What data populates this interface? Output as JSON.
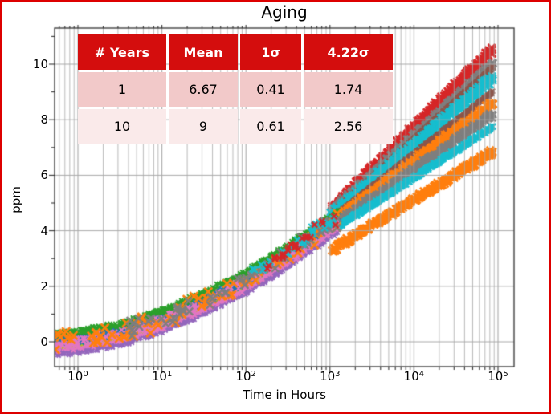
{
  "window": {
    "frame_border_color": "#dd0000",
    "background_color": "#ffffff"
  },
  "table": {
    "header": [
      "# Years",
      "Mean",
      "1σ",
      "4.22σ"
    ],
    "rows": [
      [
        "1",
        "6.67",
        "0.41",
        "1.74"
      ],
      [
        "10",
        "9",
        "0.61",
        "2.56"
      ]
    ],
    "header_bg": "#d40d0d",
    "header_text_color": "#ffffff",
    "row_bgs": [
      "#f2c9c9",
      "#faeaea"
    ]
  },
  "chart_data": {
    "type": "scatter",
    "title": "Aging",
    "xlabel": "Time in Hours",
    "ylabel": "ppm",
    "x_scale": "log",
    "x_tick_base": "10",
    "x_tick_exponents": [
      0,
      1,
      2,
      3,
      4,
      5
    ],
    "y_ticks": [
      0,
      2,
      4,
      6,
      8,
      10
    ],
    "xlim_log10": [
      -0.277,
      5.19
    ],
    "ylim": [
      -0.9,
      11.3
    ],
    "grid": true,
    "grid_color": "#a8a8a8",
    "spine_color": "#333333",
    "trend_log10t_ppm": [
      [
        -0.28,
        0.0
      ],
      [
        0,
        0.06
      ],
      [
        0.5,
        0.32
      ],
      [
        1,
        0.8
      ],
      [
        1.5,
        1.45
      ],
      [
        2,
        2.2
      ],
      [
        2.5,
        3.15
      ],
      [
        3.05,
        4.3
      ],
      [
        3.12,
        4.45
      ]
    ],
    "measured_series": [
      {
        "name": "unit-purple",
        "color": "#9467bd",
        "offset": -0.38,
        "spread": 0.15,
        "count": 650,
        "size": 5,
        "lw": 1.8
      },
      {
        "name": "unit-pink",
        "color": "#e377c2",
        "offset": -0.2,
        "spread": 0.17,
        "count": 700,
        "size": 5,
        "lw": 1.8
      },
      {
        "name": "unit-olive",
        "color": "#bcbd22",
        "offset": -0.08,
        "spread": 0.13,
        "count": 600,
        "size": 5,
        "lw": 1.8
      },
      {
        "name": "unit-blue",
        "color": "#1f77b4",
        "offset": 0.05,
        "spread": 0.2,
        "count": 950,
        "size": 5.5,
        "lw": 2.0
      },
      {
        "name": "unit-green",
        "color": "#2ca02c",
        "offset": 0.3,
        "spread": 0.12,
        "count": 550,
        "size": 5,
        "lw": 1.8
      },
      {
        "name": "unit-pink-2",
        "color": "#e377c2",
        "offset": -0.1,
        "spread": 0.28,
        "count": 260,
        "size": 6,
        "lw": 2.0
      }
    ],
    "sparse_series": [
      {
        "name": "unit-orange-x",
        "color": "#ff7f0e",
        "offset": 0.0,
        "spread": 0.42,
        "count": 80,
        "size": 10,
        "lw": 2.6,
        "lmin": -0.28
      },
      {
        "name": "unit-gray-x",
        "color": "#7f7f7f",
        "offset": 0.05,
        "spread": 0.36,
        "count": 60,
        "size": 9,
        "lw": 2.4,
        "lmin": 0.6
      },
      {
        "name": "unit-cyan-x",
        "color": "#17becf",
        "offset": 0.18,
        "spread": 0.3,
        "count": 30,
        "size": 8,
        "lw": 2.2,
        "lmin": 2.0
      },
      {
        "name": "unit-darkred-x",
        "color": "#d62728",
        "offset": 0.12,
        "spread": 0.3,
        "count": 26,
        "size": 7,
        "lw": 2.2,
        "lmin": 2.2
      }
    ],
    "extrapolation_logt_range": [
      3.02,
      4.94
    ],
    "extrapolation_bands": [
      {
        "name": "proj-red",
        "color": "#d62728",
        "ppm_at_1000h": 4.8,
        "ppm_at_10yr": 10.55,
        "halfwidth": 0.16,
        "size": 9,
        "lw": 2.6
      },
      {
        "name": "proj-gray-hi",
        "color": "#7f7f7f",
        "ppm_at_1000h": 4.65,
        "ppm_at_10yr": 10.0,
        "halfwidth": 0.16,
        "size": 9,
        "lw": 2.6
      },
      {
        "name": "proj-brown-hi",
        "color": "#8c564b",
        "ppm_at_1000h": 4.6,
        "ppm_at_10yr": 9.9,
        "halfwidth": 0.05,
        "size": 6,
        "lw": 2.0
      },
      {
        "name": "proj-cyan-hi",
        "color": "#17becf",
        "ppm_at_1000h": 4.55,
        "ppm_at_10yr": 9.5,
        "halfwidth": 0.2,
        "size": 9,
        "lw": 2.6
      },
      {
        "name": "proj-brown-lo",
        "color": "#8c564b",
        "ppm_at_1000h": 4.45,
        "ppm_at_10yr": 9.0,
        "halfwidth": 0.05,
        "size": 6,
        "lw": 2.0
      },
      {
        "name": "proj-orange-hi",
        "color": "#ff7f0e",
        "ppm_at_1000h": 4.3,
        "ppm_at_10yr": 8.6,
        "halfwidth": 0.16,
        "size": 9,
        "lw": 2.6
      },
      {
        "name": "proj-gray-lo",
        "color": "#7f7f7f",
        "ppm_at_1000h": 4.15,
        "ppm_at_10yr": 8.2,
        "halfwidth": 0.14,
        "size": 8,
        "lw": 2.4
      },
      {
        "name": "proj-cyan-lo",
        "color": "#17becf",
        "ppm_at_1000h": 4.0,
        "ppm_at_10yr": 7.75,
        "halfwidth": 0.08,
        "size": 7,
        "lw": 2.2
      },
      {
        "name": "proj-orange-low",
        "color": "#ff7f0e",
        "ppm_at_1000h": 3.3,
        "ppm_at_10yr": 6.85,
        "halfwidth": 0.13,
        "size": 9,
        "lw": 2.6
      }
    ]
  }
}
